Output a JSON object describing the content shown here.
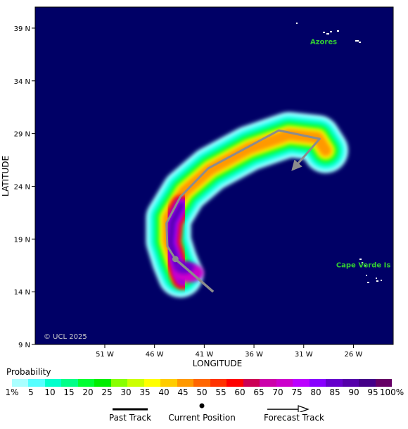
{
  "map": {
    "latitude_label": "LATITUDE",
    "longitude_label": "LONGITUDE",
    "lat_ticks": [
      {
        "value": 39,
        "text": "39 N"
      },
      {
        "value": 34,
        "text": "34 N"
      },
      {
        "value": 29,
        "text": "29 N"
      },
      {
        "value": 24,
        "text": "24 N"
      },
      {
        "value": 19,
        "text": "19 N"
      },
      {
        "value": 14,
        "text": "14 N"
      },
      {
        "value": 9,
        "text": "9 N"
      }
    ],
    "lon_ticks": [
      {
        "value": -51,
        "text": "51 W"
      },
      {
        "value": -46,
        "text": "46 W"
      },
      {
        "value": -41,
        "text": "41 W"
      },
      {
        "value": -36,
        "text": "36 W"
      },
      {
        "value": -31,
        "text": "31 W"
      },
      {
        "value": -26,
        "text": "26 W"
      }
    ],
    "extent": {
      "lon_min": -58,
      "lon_max": -22,
      "lat_min": 9,
      "lat_max": 41
    },
    "places": [
      {
        "name": "Azores",
        "lon": -29,
        "lat": 37.5
      },
      {
        "name": "Cape Verde Is",
        "lon": -25,
        "lat": 16.3
      }
    ],
    "copyright": "© UCL 2025",
    "ocean_color": "#000066",
    "track_color": "#8c8c8c",
    "current_position": {
      "lon": -43.9,
      "lat": 17.1
    },
    "forecast_track": [
      {
        "lon": -43.9,
        "lat": 17.1
      },
      {
        "lon": -44.7,
        "lat": 18.3
      },
      {
        "lon": -44.8,
        "lat": 20.5
      },
      {
        "lon": -43.4,
        "lat": 23.0
      },
      {
        "lon": -40.6,
        "lat": 25.7
      },
      {
        "lon": -33.5,
        "lat": 29.3
      },
      {
        "lon": -29.4,
        "lat": 28.5
      },
      {
        "lon": -32.1,
        "lat": 25.6
      }
    ],
    "past_track": [
      {
        "lon": -43.9,
        "lat": 17.1
      },
      {
        "lon": -40.1,
        "lat": 14.0
      }
    ]
  },
  "legend": {
    "title": "Probability",
    "colors": [
      "#aaffff",
      "#55ffff",
      "#00ffcc",
      "#00ff88",
      "#00ff33",
      "#00ee00",
      "#88ff00",
      "#ccff00",
      "#ffff00",
      "#ffcc00",
      "#ff9900",
      "#ff6600",
      "#ff3300",
      "#ff0000",
      "#cc0055",
      "#cc00aa",
      "#cc00cc",
      "#bb00ff",
      "#8800ff",
      "#6600cc",
      "#5500aa",
      "#440088",
      "#660066"
    ],
    "ticks": [
      "1%",
      "5",
      "10",
      "15",
      "20",
      "25",
      "30",
      "35",
      "40",
      "45",
      "50",
      "55",
      "60",
      "65",
      "70",
      "75",
      "80",
      "85",
      "90",
      "95",
      "100%"
    ]
  },
  "key": {
    "past_track": "Past Track",
    "current_position": "Current Position",
    "forecast_track": "Forecast Track"
  }
}
